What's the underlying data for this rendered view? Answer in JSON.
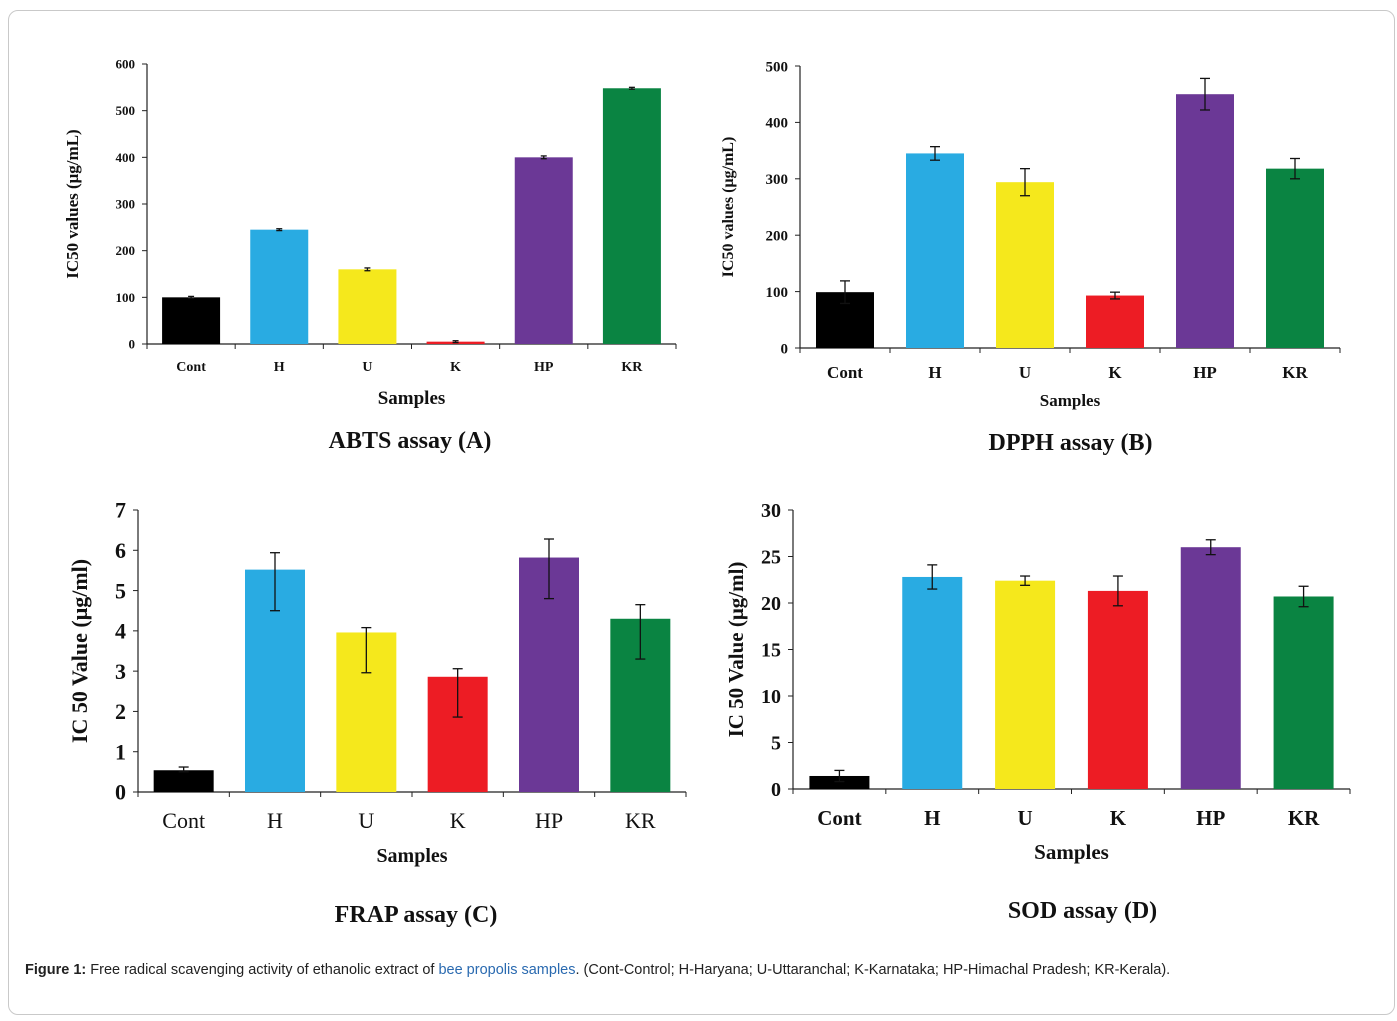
{
  "figure": {
    "caption_label": "Figure 1:",
    "caption_pre": "Free radical scavenging activity of ethanolic extract of",
    "caption_link": "bee propolis samples",
    "caption_post": ". (Cont-Control; H-Haryana; U-Uttaranchal; K-Karnataka; HP-Himachal Pradesh; KR-Kerala)."
  },
  "colors": {
    "Cont": "#000000",
    "H": "#29abe2",
    "U": "#f5e81c",
    "K": "#ed1c24",
    "HP": "#6b3896",
    "KR": "#0a8442"
  },
  "chart_data": [
    {
      "type": "bar",
      "panel_caption": "ABTS assay (A)",
      "categories": [
        "Cont",
        "H",
        "U",
        "K",
        "HP",
        "KR"
      ],
      "values": [
        100,
        245,
        160,
        5,
        400,
        548
      ],
      "errors": [
        2,
        2,
        3,
        2,
        3,
        2
      ],
      "xlabel": "Samples",
      "ylabel": "IC50 values (μg/mL)",
      "ylim": [
        0,
        600
      ],
      "yticks": [
        0,
        100,
        200,
        300,
        400,
        500,
        600
      ],
      "grid": false
    },
    {
      "type": "bar",
      "panel_caption": "DPPH assay (B)",
      "categories": [
        "Cont",
        "H",
        "U",
        "K",
        "HP",
        "KR"
      ],
      "values": [
        99,
        345,
        294,
        93,
        450,
        318
      ],
      "errors": [
        20,
        12,
        24,
        6,
        28,
        18
      ],
      "xlabel": "Samples",
      "ylabel": "IC50 values (μg/mL)",
      "ylim": [
        0,
        500
      ],
      "yticks": [
        0,
        100,
        200,
        300,
        400,
        500
      ],
      "grid": false
    },
    {
      "type": "bar",
      "panel_caption": "FRAP assay (C)",
      "categories": [
        "Cont",
        "H",
        "U",
        "K",
        "HP",
        "KR"
      ],
      "values": [
        0.54,
        5.52,
        3.96,
        2.86,
        5.82,
        4.3
      ],
      "errors": [
        0.08,
        0.42,
        0.12,
        0.2,
        0.46,
        0.35
      ],
      "errors_low": [
        0.04,
        1.02,
        1.0,
        1.0,
        1.02,
        1.0
      ],
      "xlabel": "Samples",
      "ylabel": "IC 50 Value (μg/ml)",
      "ylim": [
        0,
        7
      ],
      "yticks": [
        0,
        1,
        2,
        3,
        4,
        5,
        6,
        7
      ],
      "grid": false
    },
    {
      "type": "bar",
      "panel_caption": "SOD assay (D)",
      "categories": [
        "Cont",
        "H",
        "U",
        "K",
        "HP",
        "KR"
      ],
      "values": [
        1.4,
        22.8,
        22.4,
        21.3,
        26.0,
        20.7
      ],
      "errors": [
        0.6,
        1.3,
        0.5,
        1.6,
        0.8,
        1.1
      ],
      "xlabel": "Samples",
      "ylabel": "IC 50 Value (μg/ml)",
      "ylim": [
        0,
        30
      ],
      "yticks": [
        0,
        5,
        10,
        15,
        20,
        25,
        30
      ],
      "grid": false
    }
  ]
}
